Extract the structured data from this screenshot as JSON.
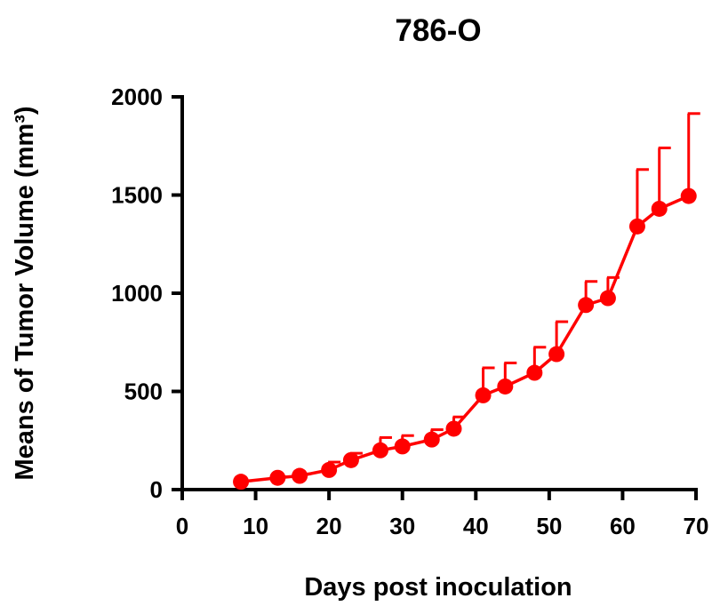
{
  "chart_data": {
    "type": "line",
    "title": "786-O",
    "xlabel": "Days post inoculation",
    "ylabel": "Means of Tumor Volume (mm³)",
    "xlim": [
      0,
      70
    ],
    "ylim": [
      0,
      2000
    ],
    "x_ticks": [
      "0",
      "10",
      "20",
      "30",
      "40",
      "50",
      "60",
      "70"
    ],
    "y_ticks": [
      "0",
      "500",
      "1000",
      "1500",
      "2000"
    ],
    "grid": false,
    "legend": "none",
    "series": [
      {
        "color": "#ff0000",
        "x": [
          8,
          13,
          16,
          20,
          23,
          27,
          30,
          34,
          37,
          41,
          44,
          48,
          51,
          55,
          58,
          62,
          65,
          69
        ],
        "values": [
          40,
          60,
          70,
          100,
          150,
          200,
          220,
          255,
          310,
          480,
          525,
          595,
          690,
          940,
          975,
          1340,
          1430,
          1495
        ],
        "error_upper": [
          45,
          65,
          80,
          140,
          185,
          265,
          275,
          305,
          370,
          620,
          645,
          725,
          855,
          1060,
          1080,
          1630,
          1740,
          1915
        ]
      }
    ]
  }
}
